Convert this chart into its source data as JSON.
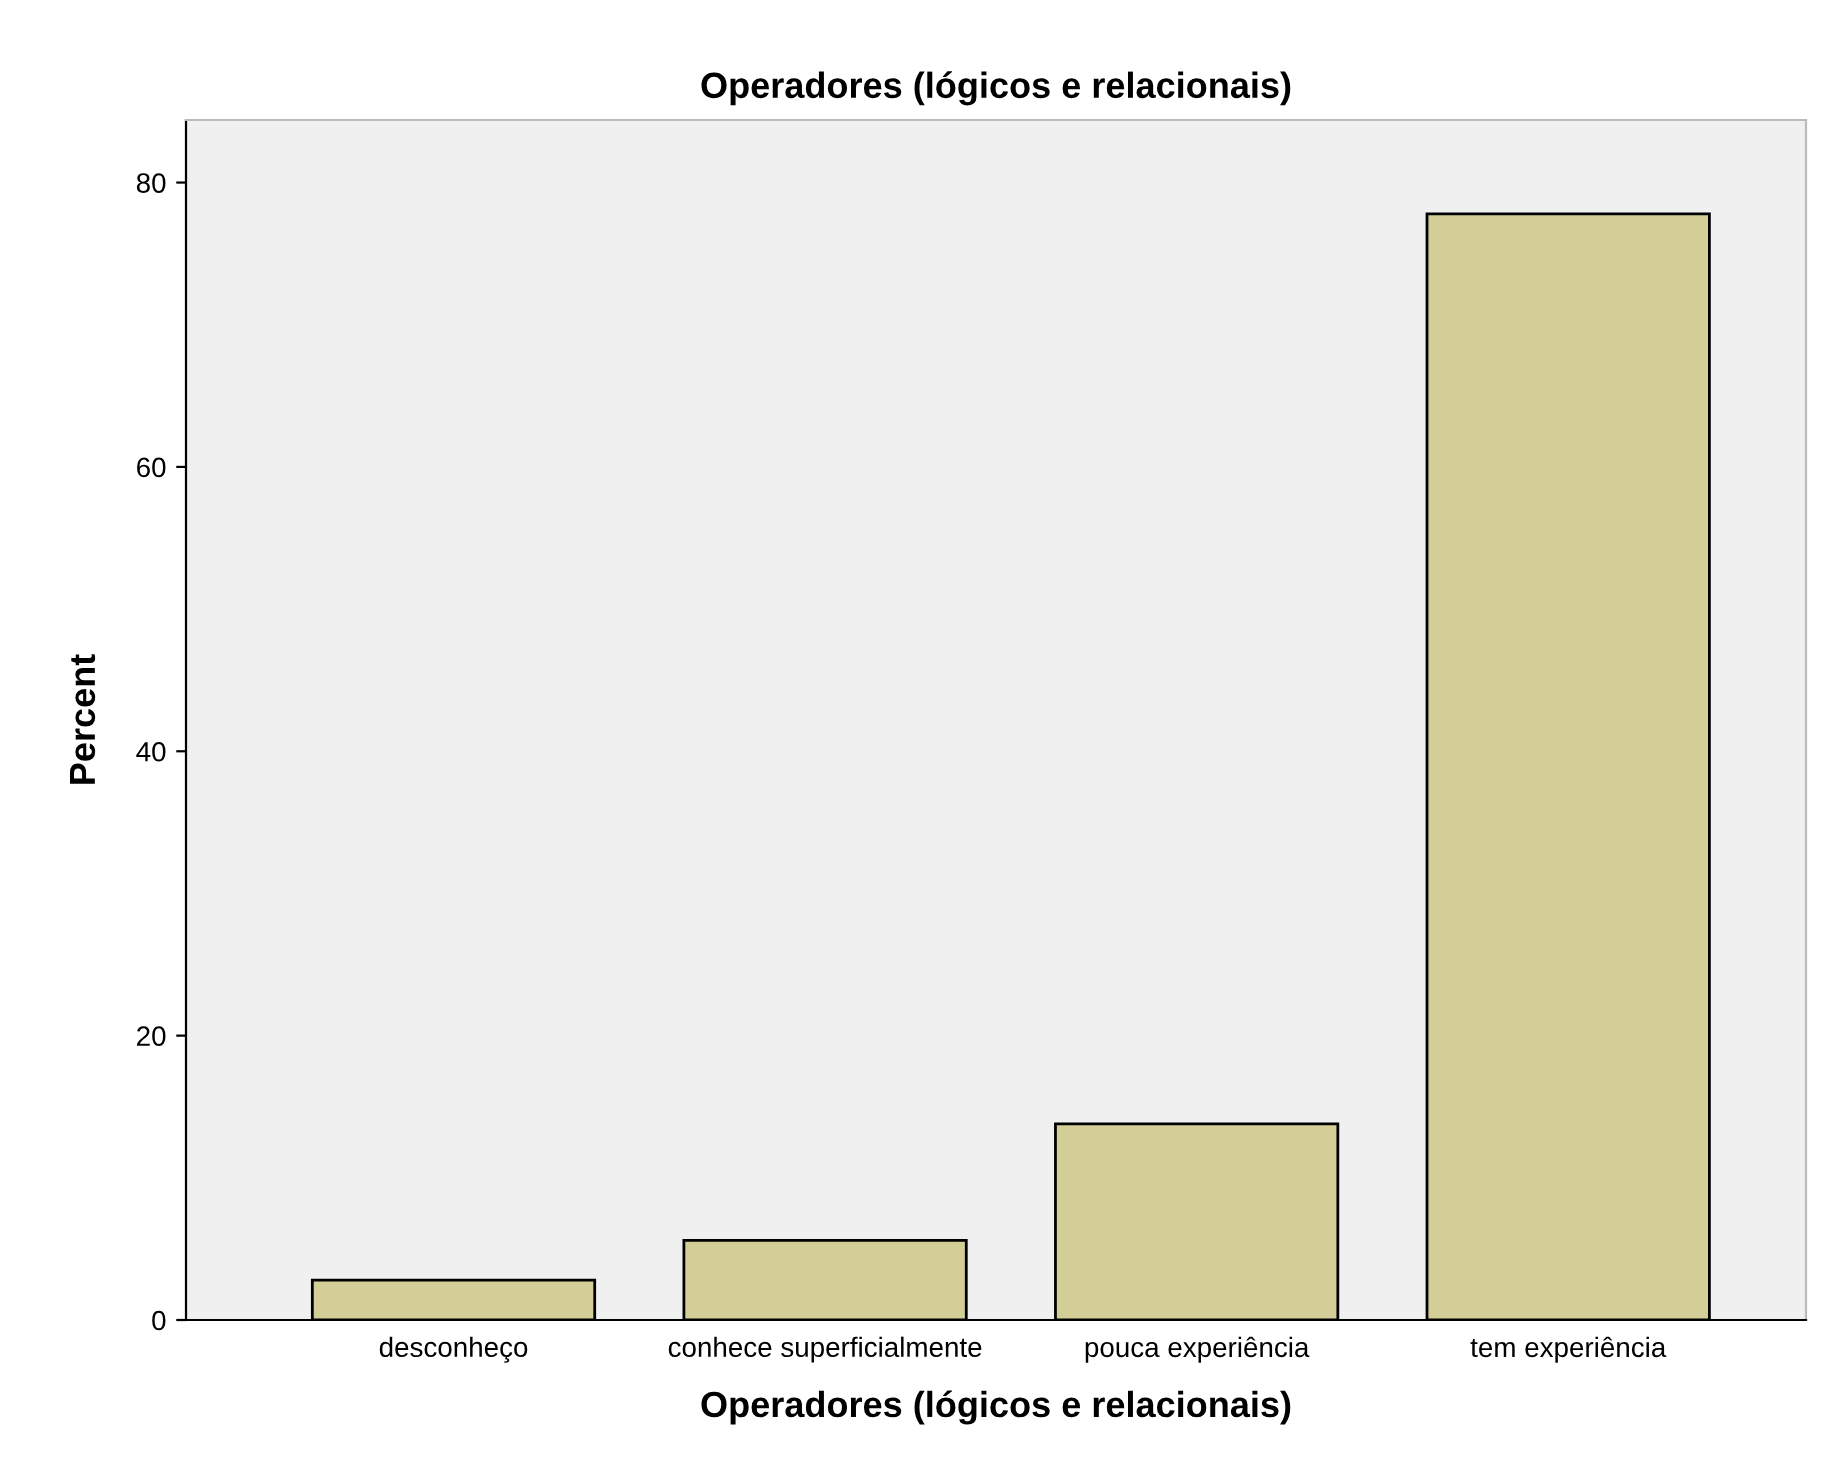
{
  "chart_data": {
    "type": "bar",
    "title": "Operadores (lógicos e relacionais)",
    "xlabel": "Operadores (lógicos e relacionais)",
    "ylabel": "Percent",
    "categories": [
      "desconheço",
      "conhece superficialmente",
      "pouca experiência",
      "tem experiência"
    ],
    "values": [
      2.8,
      5.6,
      13.8,
      77.8
    ],
    "color": "#d3ce97",
    "ylim": [
      0,
      84.4
    ],
    "yticks": [
      0,
      20,
      40,
      60,
      80
    ],
    "grid": false,
    "legend": false
  }
}
